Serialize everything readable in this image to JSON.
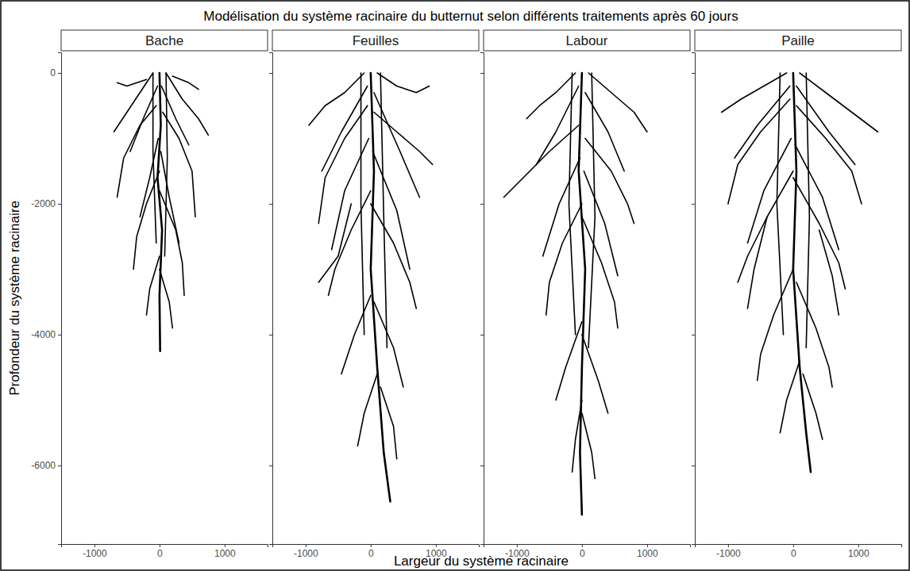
{
  "chart_data": {
    "type": "line",
    "title": "Modélisation du système racinaire du butternut selon différents traitements après 60 jours",
    "x_label": "Largeur du système racinaire",
    "y_label": "Profondeur du système racinaire",
    "xlim": [
      -1510,
      1660
    ],
    "ylim": [
      -7200,
      315
    ],
    "xticks": [
      -1000,
      0,
      1000
    ],
    "yticks": [
      0,
      -2000,
      -4000,
      -6000
    ],
    "grid": false,
    "color": "#000000",
    "panels": [
      {
        "title": "Bache",
        "series": [
          {
            "x": [
              0,
              20,
              -30,
              40,
              0,
              10
            ],
            "values": [
              0,
              -800,
              -1600,
              -2400,
              -3400,
              -4250
            ]
          },
          {
            "x": [
              -100,
              -300,
              -500,
              -700
            ],
            "values": [
              0,
              -300,
              -600,
              -900
            ]
          },
          {
            "x": [
              100,
              350,
              600,
              750
            ],
            "values": [
              0,
              -400,
              -700,
              -950
            ]
          },
          {
            "x": [
              -50,
              -300,
              -550,
              -650
            ],
            "values": [
              -500,
              -800,
              -1300,
              -1900
            ]
          },
          {
            "x": [
              50,
              300,
              500,
              550
            ],
            "values": [
              -600,
              -1000,
              -1500,
              -2200
            ]
          },
          {
            "x": [
              0,
              -200,
              -350,
              -400
            ],
            "values": [
              -1500,
              -2000,
              -2500,
              -3000
            ]
          },
          {
            "x": [
              0,
              250,
              350,
              380
            ],
            "values": [
              -1800,
              -2400,
              -2900,
              -3400
            ]
          },
          {
            "x": [
              0,
              -150,
              -200
            ],
            "values": [
              -2800,
              -3300,
              -3700
            ]
          },
          {
            "x": [
              0,
              150,
              200
            ],
            "values": [
              -3000,
              -3500,
              -3900
            ]
          },
          {
            "x": [
              -200,
              -500,
              -650
            ],
            "values": [
              -100,
              -200,
              -150
            ]
          },
          {
            "x": [
              200,
              450,
              600
            ],
            "values": [
              -50,
              -150,
              -250
            ]
          },
          {
            "x": [
              -30,
              -250,
              -450
            ],
            "values": [
              -200,
              -700,
              -1200
            ]
          },
          {
            "x": [
              30,
              250,
              450
            ],
            "values": [
              -200,
              -700,
              -1100
            ]
          },
          {
            "x": [
              -20,
              -150,
              -300
            ],
            "values": [
              -1000,
              -1600,
              -2200
            ]
          },
          {
            "x": [
              20,
              150,
              300
            ],
            "values": [
              -1200,
              -1900,
              -2600
            ]
          },
          {
            "x": [
              -100,
              -100,
              -50
            ],
            "values": [
              0,
              -1200,
              -2600
            ]
          },
          {
            "x": [
              100,
              120,
              80
            ],
            "values": [
              0,
              -1300,
              -2800
            ]
          }
        ]
      },
      {
        "title": "Feuilles",
        "series": [
          {
            "x": [
              0,
              50,
              0,
              100,
              200,
              300
            ],
            "values": [
              0,
              -1500,
              -3000,
              -4500,
              -5800,
              -6550
            ]
          },
          {
            "x": [
              -100,
              -400,
              -700,
              -950
            ],
            "values": [
              0,
              -300,
              -500,
              -800
            ]
          },
          {
            "x": [
              100,
              400,
              700,
              900
            ],
            "values": [
              0,
              -200,
              -300,
              -200
            ]
          },
          {
            "x": [
              -50,
              -400,
              -700,
              -800
            ],
            "values": [
              -500,
              -1000,
              -1600,
              -2300
            ]
          },
          {
            "x": [
              50,
              400,
              750,
              950
            ],
            "values": [
              -600,
              -900,
              -1200,
              -1400
            ]
          },
          {
            "x": [
              0,
              -300,
              -550,
              -650
            ],
            "values": [
              -1800,
              -2400,
              -3000,
              -3400
            ]
          },
          {
            "x": [
              0,
              350,
              600,
              700
            ],
            "values": [
              -2000,
              -2600,
              -3200,
              -3600
            ]
          },
          {
            "x": [
              0,
              -250,
              -450
            ],
            "values": [
              -3400,
              -4000,
              -4600
            ]
          },
          {
            "x": [
              50,
              350,
              500
            ],
            "values": [
              -3500,
              -4200,
              -4800
            ]
          },
          {
            "x": [
              100,
              -100,
              -200
            ],
            "values": [
              -4600,
              -5200,
              -5700
            ]
          },
          {
            "x": [
              150,
              350,
              400
            ],
            "values": [
              -4800,
              -5400,
              -5900
            ]
          },
          {
            "x": [
              -50,
              -450,
              -750
            ],
            "values": [
              -200,
              -900,
              -1500
            ]
          },
          {
            "x": [
              50,
              450,
              750
            ],
            "values": [
              -300,
              -1200,
              -1900
            ]
          },
          {
            "x": [
              -150,
              -150,
              -100
            ],
            "values": [
              0,
              -2000,
              -4000
            ]
          },
          {
            "x": [
              150,
              200,
              250
            ],
            "values": [
              0,
              -2200,
              -4200
            ]
          },
          {
            "x": [
              -30,
              -400,
              -600
            ],
            "values": [
              -1000,
              -1800,
              -2700
            ]
          },
          {
            "x": [
              30,
              400,
              600
            ],
            "values": [
              -1200,
              -2100,
              -3000
            ]
          },
          {
            "x": [
              -300,
              -500,
              -800
            ],
            "values": [
              -2000,
              -2800,
              -3200
            ]
          }
        ]
      },
      {
        "title": "Labour",
        "series": [
          {
            "x": [
              0,
              -50,
              50,
              0,
              -30,
              0
            ],
            "values": [
              0,
              -1500,
              -3000,
              -4500,
              -5800,
              -6750
            ]
          },
          {
            "x": [
              -100,
              -400,
              -650,
              -850
            ],
            "values": [
              0,
              -300,
              -500,
              -700
            ]
          },
          {
            "x": [
              100,
              450,
              800,
              1000
            ],
            "values": [
              0,
              -300,
              -600,
              -900
            ]
          },
          {
            "x": [
              -50,
              -500,
              -900,
              -1200
            ],
            "values": [
              -800,
              -1200,
              -1600,
              -1900
            ]
          },
          {
            "x": [
              50,
              450,
              700,
              800
            ],
            "values": [
              -1000,
              -1500,
              -2000,
              -2300
            ]
          },
          {
            "x": [
              0,
              -300,
              -500,
              -550
            ],
            "values": [
              -2000,
              -2600,
              -3200,
              -3700
            ]
          },
          {
            "x": [
              0,
              300,
              500,
              550
            ],
            "values": [
              -2200,
              -2900,
              -3500,
              -3900
            ]
          },
          {
            "x": [
              0,
              -250,
              -400
            ],
            "values": [
              -3800,
              -4500,
              -5000
            ]
          },
          {
            "x": [
              0,
              250,
              400
            ],
            "values": [
              -4000,
              -4700,
              -5200
            ]
          },
          {
            "x": [
              0,
              -100,
              -150
            ],
            "values": [
              -5000,
              -5600,
              -6100
            ]
          },
          {
            "x": [
              0,
              150,
              200
            ],
            "values": [
              -5200,
              -5800,
              -6200
            ]
          },
          {
            "x": [
              -50,
              -400,
              -700
            ],
            "values": [
              -200,
              -900,
              -1400
            ]
          },
          {
            "x": [
              50,
              400,
              650
            ],
            "values": [
              -300,
              -900,
              -1500
            ]
          },
          {
            "x": [
              -150,
              -200,
              -100
            ],
            "values": [
              0,
              -2000,
              -4000
            ]
          },
          {
            "x": [
              150,
              200,
              100
            ],
            "values": [
              0,
              -2200,
              -4200
            ]
          },
          {
            "x": [
              -30,
              -350,
              -600
            ],
            "values": [
              -1300,
              -2000,
              -2800
            ]
          },
          {
            "x": [
              30,
              350,
              550
            ],
            "values": [
              -1500,
              -2300,
              -3100
            ]
          }
        ]
      },
      {
        "title": "Paille",
        "series": [
          {
            "x": [
              0,
              50,
              0,
              100,
              200,
              270
            ],
            "values": [
              0,
              -1500,
              -3000,
              -4500,
              -5500,
              -6100
            ]
          },
          {
            "x": [
              -100,
              -450,
              -800,
              -1100
            ],
            "values": [
              0,
              -200,
              -400,
              -600
            ]
          },
          {
            "x": [
              100,
              500,
              900,
              1300
            ],
            "values": [
              0,
              -300,
              -600,
              -900
            ]
          },
          {
            "x": [
              -50,
              -500,
              -850,
              -1000
            ],
            "values": [
              -400,
              -900,
              -1400,
              -2000
            ]
          },
          {
            "x": [
              50,
              500,
              900,
              1050
            ],
            "values": [
              -500,
              -1000,
              -1500,
              -2000
            ]
          },
          {
            "x": [
              0,
              -400,
              -700,
              -850
            ],
            "values": [
              -1500,
              -2200,
              -2800,
              -3200
            ]
          },
          {
            "x": [
              0,
              400,
              700,
              800
            ],
            "values": [
              -1600,
              -2300,
              -2900,
              -3300
            ]
          },
          {
            "x": [
              0,
              -300,
              -500,
              -550
            ],
            "values": [
              -3000,
              -3700,
              -4300,
              -4700
            ]
          },
          {
            "x": [
              50,
              350,
              550,
              600
            ],
            "values": [
              -3200,
              -3900,
              -4500,
              -4800
            ]
          },
          {
            "x": [
              100,
              -100,
              -200
            ],
            "values": [
              -4400,
              -5000,
              -5500
            ]
          },
          {
            "x": [
              150,
              350,
              450
            ],
            "values": [
              -4600,
              -5200,
              -5600
            ]
          },
          {
            "x": [
              -50,
              -550,
              -900
            ],
            "values": [
              -200,
              -800,
              -1300
            ]
          },
          {
            "x": [
              50,
              550,
              950
            ],
            "values": [
              -200,
              -900,
              -1400
            ]
          },
          {
            "x": [
              -200,
              -250,
              -150
            ],
            "values": [
              0,
              -2000,
              -4000
            ]
          },
          {
            "x": [
              200,
              250,
              200
            ],
            "values": [
              0,
              -2200,
              -4200
            ]
          },
          {
            "x": [
              -30,
              -450,
              -700
            ],
            "values": [
              -1000,
              -1800,
              -2600
            ]
          },
          {
            "x": [
              30,
              450,
              700
            ],
            "values": [
              -1100,
              -1900,
              -2700
            ]
          },
          {
            "x": [
              -400,
              -600,
              -700
            ],
            "values": [
              -2200,
              -3000,
              -3600
            ]
          },
          {
            "x": [
              400,
              600,
              700
            ],
            "values": [
              -2400,
              -3100,
              -3700
            ]
          }
        ]
      }
    ]
  }
}
